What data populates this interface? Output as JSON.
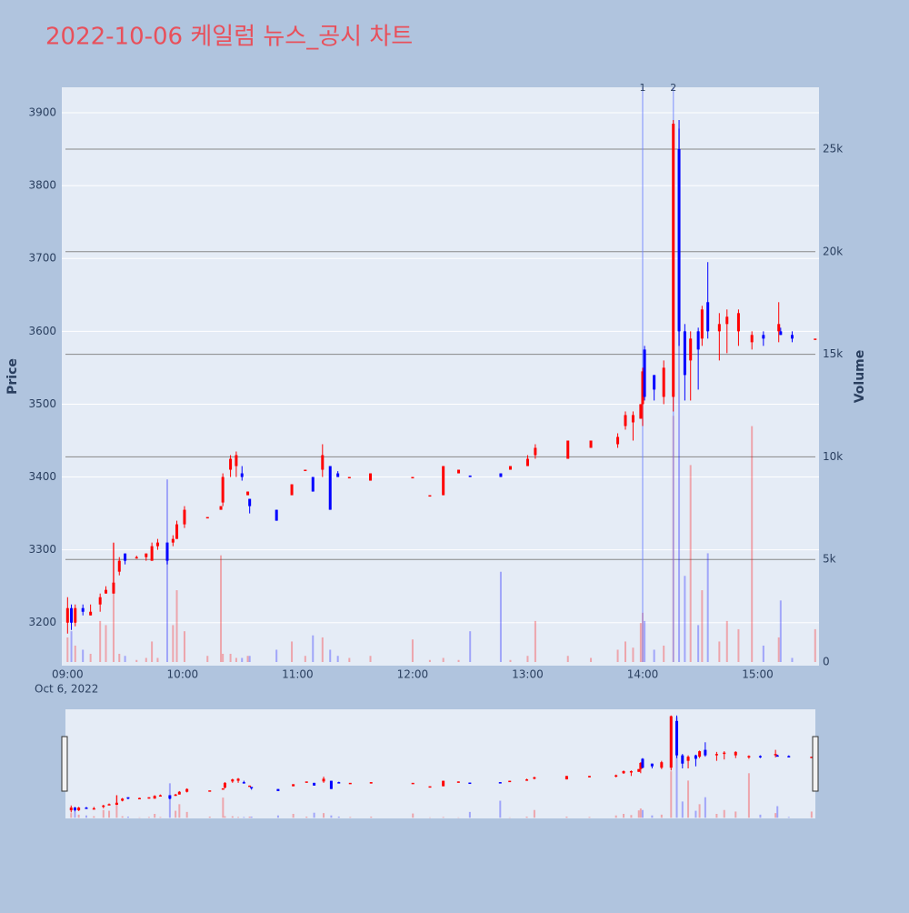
{
  "chart_data": {
    "type": "candlestick",
    "title": "2022-10-06 케일럼 뉴스_공시 차트",
    "date_label": "Oct 6, 2022",
    "yaxis_title": "Price",
    "y2axis_title": "Volume",
    "increasing_color": "#ff0000",
    "decreasing_color": "#0000ff",
    "xlim": [
      "2022-10-06 08:57",
      "2022-10-06 15:32"
    ],
    "xticks": [
      {
        "value": "2022-10-06 09:00",
        "label": "09:00"
      },
      {
        "value": "2022-10-06 10:00",
        "label": "10:00"
      },
      {
        "value": "2022-10-06 11:00",
        "label": "11:00"
      },
      {
        "value": "2022-10-06 12:00",
        "label": "12:00"
      },
      {
        "value": "2022-10-06 13:00",
        "label": "13:00"
      },
      {
        "value": "2022-10-06 14:00",
        "label": "14:00"
      },
      {
        "value": "2022-10-06 15:00",
        "label": "15:00"
      }
    ],
    "ylim": [
      3141,
      3935
    ],
    "yticks": [
      3200,
      3300,
      3400,
      3500,
      3600,
      3700,
      3800,
      3900
    ],
    "y2lim": [
      -177,
      28014
    ],
    "y2ticks": [
      0,
      {
        "value": 5000,
        "label": "5k"
      },
      {
        "value": 10000,
        "label": "10k"
      },
      {
        "value": 15000,
        "label": "15k"
      },
      {
        "value": 20000,
        "label": "20k"
      },
      {
        "value": 25000,
        "label": "25k"
      }
    ],
    "x": [
      "2022-10-06 09:00",
      "2022-10-06 09:02",
      "2022-10-06 09:04",
      "2022-10-06 09:08",
      "2022-10-06 09:12",
      "2022-10-06 09:17",
      "2022-10-06 09:20",
      "2022-10-06 09:24",
      "2022-10-06 09:27",
      "2022-10-06 09:30",
      "2022-10-06 09:36",
      "2022-10-06 09:41",
      "2022-10-06 09:44",
      "2022-10-06 09:47",
      "2022-10-06 09:52",
      "2022-10-06 09:55",
      "2022-10-06 09:57",
      "2022-10-06 10:01",
      "2022-10-06 10:13",
      "2022-10-06 10:20",
      "2022-10-06 10:21",
      "2022-10-06 10:25",
      "2022-10-06 10:28",
      "2022-10-06 10:31",
      "2022-10-06 10:34",
      "2022-10-06 10:35",
      "2022-10-06 10:49",
      "2022-10-06 10:57",
      "2022-10-06 11:04",
      "2022-10-06 11:08",
      "2022-10-06 11:13",
      "2022-10-06 11:17",
      "2022-10-06 11:21",
      "2022-10-06 11:27",
      "2022-10-06 11:38",
      "2022-10-06 12:00",
      "2022-10-06 12:09",
      "2022-10-06 12:16",
      "2022-10-06 12:24",
      "2022-10-06 12:30",
      "2022-10-06 12:46",
      "2022-10-06 12:51",
      "2022-10-06 13:00",
      "2022-10-06 13:04",
      "2022-10-06 13:21",
      "2022-10-06 13:33",
      "2022-10-06 13:47",
      "2022-10-06 13:51",
      "2022-10-06 13:55",
      "2022-10-06 13:59",
      "2022-10-06 14:00",
      "2022-10-06 14:01",
      "2022-10-06 14:06",
      "2022-10-06 14:11",
      "2022-10-06 14:16",
      "2022-10-06 14:19",
      "2022-10-06 14:22",
      "2022-10-06 14:25",
      "2022-10-06 14:29",
      "2022-10-06 14:31",
      "2022-10-06 14:34",
      "2022-10-06 14:40",
      "2022-10-06 14:44",
      "2022-10-06 14:50",
      "2022-10-06 14:57",
      "2022-10-06 15:03",
      "2022-10-06 15:11",
      "2022-10-06 15:12",
      "2022-10-06 15:18",
      "2022-10-06 15:30"
    ],
    "open": [
      3200,
      3220,
      3200,
      3220,
      3210,
      3225,
      3240,
      3240,
      3270,
      3295,
      3290,
      3290,
      3285,
      3305,
      3310,
      3310,
      3315,
      3335,
      3345,
      3355,
      3365,
      3410,
      3415,
      3405,
      3375,
      3370,
      3355,
      3375,
      3410,
      3400,
      3410,
      3415,
      3405,
      3400,
      3395,
      3400,
      3375,
      3375,
      3405,
      3402,
      3405,
      3410,
      3415,
      3430,
      3425,
      3440,
      3445,
      3470,
      3475,
      3480,
      3500,
      3575,
      3540,
      3510,
      3510,
      3850,
      3600,
      3560,
      3600,
      3590,
      3640,
      3600,
      3610,
      3600,
      3585,
      3595,
      3600,
      3600,
      3595,
      3590
    ],
    "high": [
      3235,
      3225,
      3225,
      3225,
      3225,
      3240,
      3250,
      3310,
      3290,
      3295,
      3292,
      3295,
      3310,
      3315,
      3310,
      3320,
      3340,
      3360,
      3345,
      3360,
      3405,
      3430,
      3435,
      3415,
      3380,
      3370,
      3355,
      3390,
      3410,
      3400,
      3445,
      3415,
      3408,
      3400,
      3405,
      3400,
      3375,
      3415,
      3410,
      3402,
      3405,
      3415,
      3430,
      3445,
      3450,
      3450,
      3460,
      3490,
      3490,
      3500,
      3550,
      3580,
      3540,
      3560,
      3890,
      3890,
      3610,
      3600,
      3605,
      3635,
      3695,
      3625,
      3630,
      3630,
      3600,
      3600,
      3640,
      3605,
      3600,
      3590
    ],
    "low": [
      3185,
      3190,
      3195,
      3210,
      3210,
      3215,
      3240,
      3240,
      3265,
      3280,
      3288,
      3285,
      3285,
      3300,
      3280,
      3305,
      3315,
      3330,
      3345,
      3355,
      3360,
      3400,
      3400,
      3395,
      3375,
      3350,
      3340,
      3375,
      3410,
      3380,
      3400,
      3355,
      3400,
      3400,
      3395,
      3400,
      3375,
      3375,
      3405,
      3400,
      3400,
      3410,
      3415,
      3425,
      3425,
      3440,
      3440,
      3465,
      3450,
      3480,
      3470,
      3505,
      3505,
      3500,
      3490,
      3580,
      3505,
      3505,
      3520,
      3580,
      3590,
      3560,
      3570,
      3580,
      3575,
      3580,
      3585,
      3595,
      3585,
      3590
    ],
    "close": [
      3220,
      3200,
      3220,
      3215,
      3215,
      3235,
      3245,
      3255,
      3285,
      3285,
      3290,
      3295,
      3305,
      3310,
      3285,
      3315,
      3335,
      3355,
      3345,
      3360,
      3400,
      3425,
      3430,
      3400,
      3380,
      3360,
      3340,
      3390,
      3410,
      3380,
      3430,
      3355,
      3400,
      3400,
      3405,
      3400,
      3375,
      3415,
      3410,
      3400,
      3400,
      3415,
      3425,
      3440,
      3450,
      3450,
      3455,
      3485,
      3485,
      3500,
      3545,
      3510,
      3520,
      3550,
      3885,
      3600,
      3540,
      3590,
      3575,
      3630,
      3600,
      3610,
      3620,
      3625,
      3595,
      3590,
      3610,
      3595,
      3590,
      3590
    ],
    "volume": {
      "name": "Volume",
      "axis": "y2",
      "values": [
        1200,
        1500,
        800,
        600,
        400,
        2000,
        1800,
        5800,
        400,
        300,
        100,
        200,
        1000,
        200,
        8900,
        1800,
        3500,
        1500,
        300,
        5200,
        400,
        400,
        200,
        200,
        300,
        300,
        600,
        1000,
        300,
        1300,
        1200,
        600,
        300,
        200,
        300,
        1100,
        100,
        200,
        100,
        1500,
        4400,
        100,
        300,
        2000,
        300,
        200,
        600,
        1000,
        700,
        1900,
        2400,
        2000,
        600,
        800,
        12000,
        26000,
        4200,
        9600,
        1800,
        3500,
        5300,
        1000,
        2000,
        1600,
        11500,
        800,
        1200,
        3000,
        200,
        1600
      ]
    },
    "annotations": [
      {
        "x": "2022-10-06 14:00",
        "text": "1"
      },
      {
        "x": "2022-10-06 14:16",
        "text": "2"
      }
    ]
  }
}
